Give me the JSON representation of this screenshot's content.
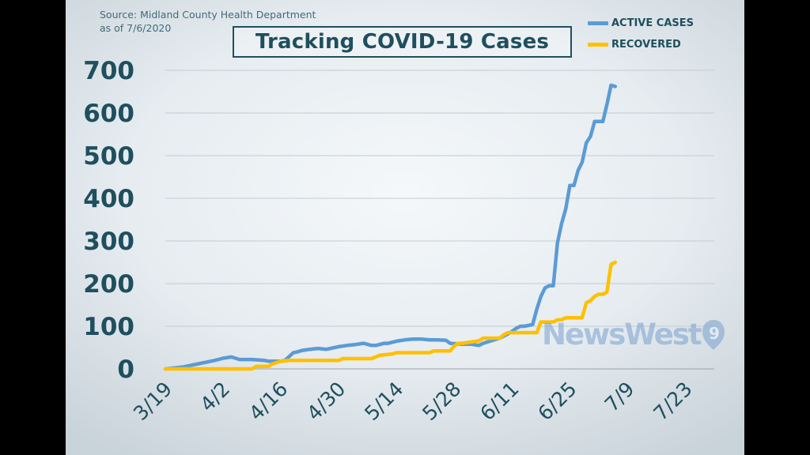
{
  "source_line1": "Source: Midland County Health Department",
  "source_line2": "as of 7/6/2020",
  "watermark": "NewsWest",
  "chart_data": {
    "type": "line",
    "title": "Tracking COVID-19 Cases",
    "xlabel": "",
    "ylabel": "",
    "ylim": [
      0,
      700
    ],
    "yticks": [
      0,
      100,
      200,
      300,
      400,
      500,
      600,
      700
    ],
    "xlim": [
      "3/19",
      "7/30"
    ],
    "xticks": [
      "3/19",
      "4/2",
      "4/16",
      "4/30",
      "5/14",
      "5/28",
      "6/11",
      "6/25",
      "7/9",
      "7/23"
    ],
    "grid": true,
    "legend": "top-right",
    "series": [
      {
        "name": "ACTIVE CASES",
        "color": "#5b9bd5",
        "x": [
          "3/19",
          "3/21",
          "3/23",
          "3/25",
          "3/27",
          "3/29",
          "3/31",
          "4/2",
          "4/4",
          "4/6",
          "4/7",
          "4/8",
          "4/9",
          "4/12",
          "4/13",
          "4/15",
          "4/16",
          "4/17",
          "4/19",
          "4/20",
          "4/21",
          "4/23",
          "4/25",
          "4/27",
          "4/29",
          "4/30",
          "5/2",
          "5/4",
          "5/6",
          "5/8",
          "5/9",
          "5/11",
          "5/12",
          "5/14",
          "5/16",
          "5/18",
          "5/20",
          "5/22",
          "5/24",
          "5/26",
          "5/27",
          "5/30",
          "6/1",
          "6/3",
          "6/4",
          "6/6",
          "6/8",
          "6/10",
          "6/11",
          "6/12",
          "6/13",
          "6/14",
          "6/16",
          "6/17",
          "6/18",
          "6/19",
          "6/20",
          "6/21",
          "6/22",
          "6/23",
          "6/24",
          "6/25",
          "6/26",
          "6/27",
          "6/28",
          "6/29",
          "6/30",
          "7/1",
          "7/2",
          "7/3",
          "7/4",
          "7/5",
          "7/6"
        ],
        "y": [
          0,
          2,
          4,
          8,
          12,
          16,
          20,
          25,
          28,
          22,
          22,
          22,
          22,
          20,
          18,
          18,
          18,
          20,
          38,
          40,
          43,
          46,
          48,
          46,
          50,
          52,
          55,
          57,
          60,
          55,
          55,
          60,
          60,
          65,
          68,
          70,
          70,
          68,
          68,
          67,
          60,
          58,
          58,
          55,
          60,
          66,
          72,
          82,
          88,
          95,
          100,
          100,
          104,
          140,
          170,
          190,
          195,
          195,
          295,
          340,
          375,
          430,
          430,
          465,
          485,
          530,
          545,
          580,
          580,
          580,
          620,
          665,
          662
        ]
      },
      {
        "name": "RECOVERED",
        "color": "#ffc000",
        "x": [
          "3/19",
          "4/9",
          "4/10",
          "4/13",
          "4/14",
          "4/16",
          "4/18",
          "4/30",
          "5/1",
          "5/8",
          "5/10",
          "5/13",
          "5/14",
          "5/22",
          "5/23",
          "5/27",
          "5/28",
          "5/29",
          "5/30",
          "6/3",
          "6/4",
          "6/6",
          "6/8",
          "6/9",
          "6/10",
          "6/11",
          "6/17",
          "6/18",
          "6/21",
          "6/22",
          "6/23",
          "6/24",
          "6/28",
          "6/29",
          "6/30",
          "7/1",
          "7/2",
          "7/3",
          "7/4",
          "7/5",
          "7/6"
        ],
        "y": [
          0,
          0,
          6,
          6,
          12,
          18,
          20,
          20,
          24,
          24,
          32,
          35,
          38,
          38,
          42,
          42,
          54,
          60,
          60,
          66,
          72,
          72,
          72,
          80,
          85,
          85,
          85,
          110,
          110,
          115,
          115,
          120,
          120,
          155,
          160,
          170,
          175,
          175,
          180,
          245,
          250
        ]
      }
    ]
  }
}
